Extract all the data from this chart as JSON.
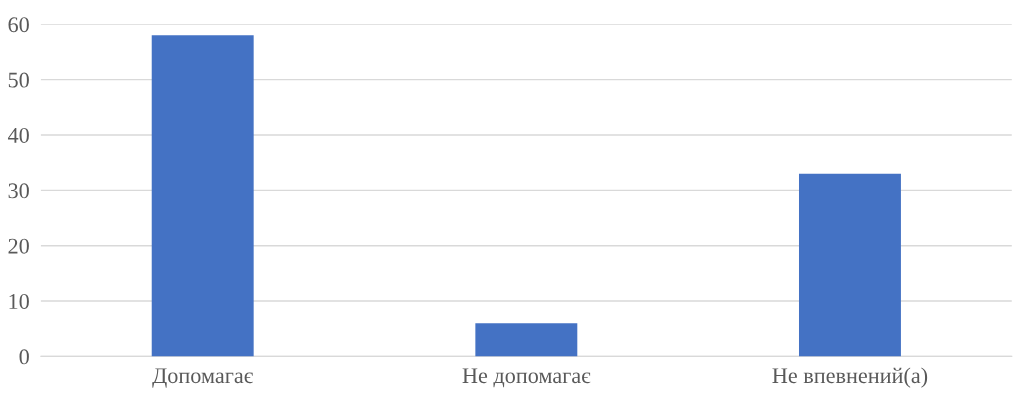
{
  "chart_data": {
    "type": "bar",
    "categories": [
      "Допомагає",
      "Не допомагає",
      "Не впевнений(а)"
    ],
    "values": [
      58,
      6,
      33
    ],
    "color": "#4472c4",
    "ylim": [
      0,
      60
    ],
    "yticks": [
      0,
      10,
      20,
      30,
      40,
      50,
      60
    ],
    "grid": "y",
    "legend": false
  }
}
